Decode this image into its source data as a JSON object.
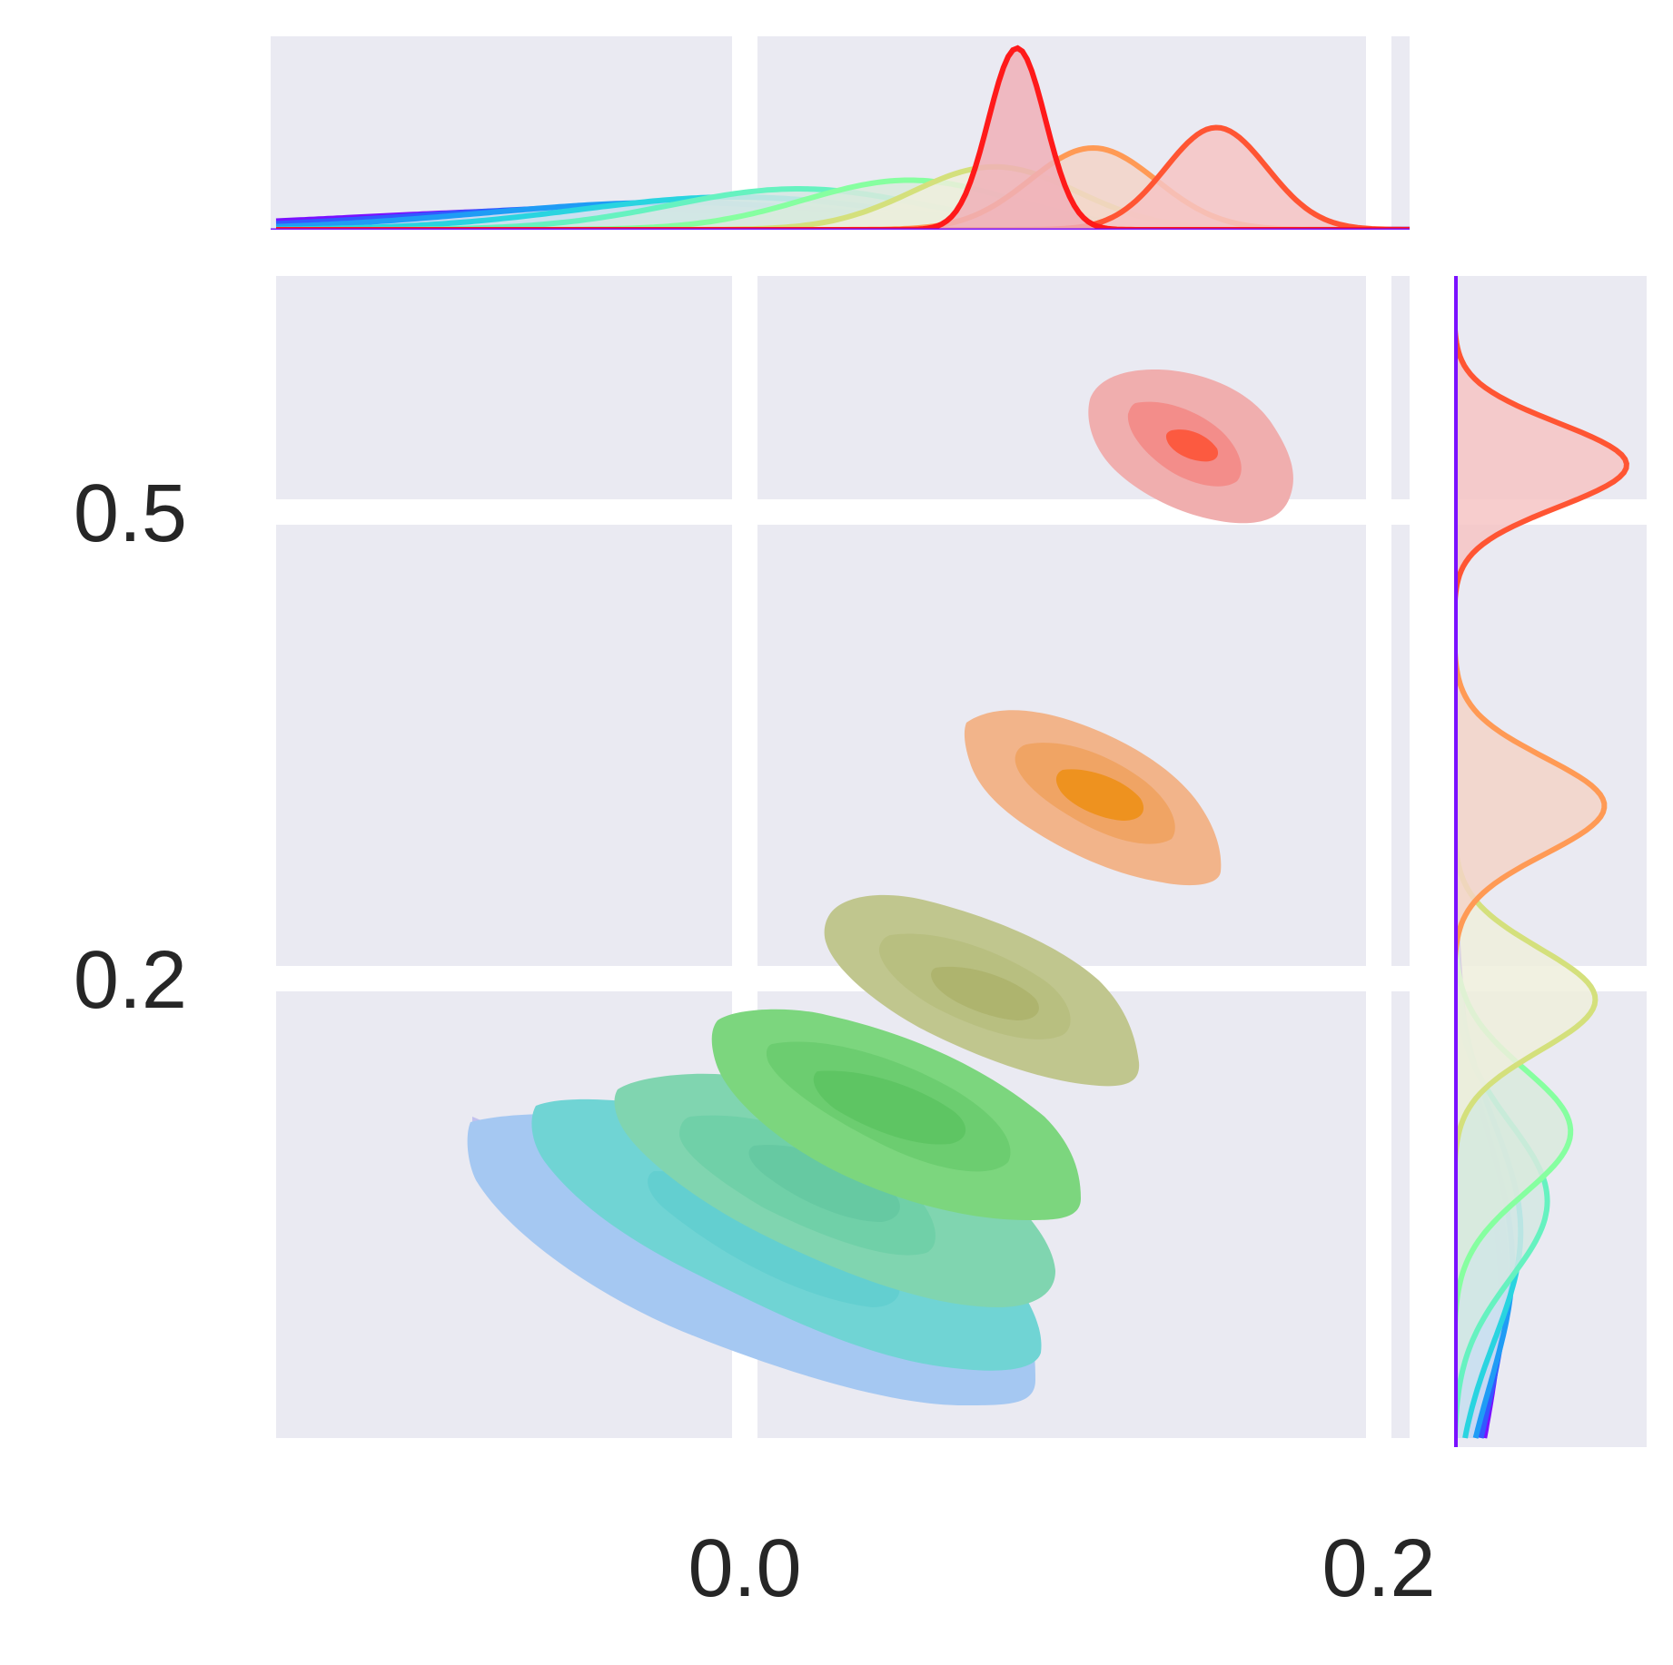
{
  "chart_data": {
    "type": "joint-kde",
    "background_color": "#eaeaf2",
    "grid": true,
    "grid_color": "#ffffff",
    "x_axis": {
      "ticks": [
        0.0,
        0.2
      ],
      "tick_labels": [
        "0.0",
        "0.2"
      ],
      "range": [
        -0.145,
        0.213
      ]
    },
    "y_axis": {
      "ticks": [
        0.2,
        0.5
      ],
      "tick_labels": [
        "0.2",
        "0.5"
      ],
      "range": [
        -0.083,
        0.667
      ]
    },
    "series": [
      {
        "color": "#ff1a1a",
        "fill": "#f0b0b8",
        "x_mean": 0.089,
        "y_mean": null,
        "x_sd": 0.009,
        "y_sd": null,
        "joint_fill": null
      },
      {
        "color": "#ff5533",
        "fill": "#f6c4c4",
        "x_mean": 0.152,
        "y_mean": 0.545,
        "x_sd": 0.016,
        "y_sd": 0.027,
        "joint_fill": "#fc6a4e"
      },
      {
        "color": "#ff9a55",
        "fill": "#f3d4c8",
        "x_mean": 0.113,
        "y_mean": 0.325,
        "x_sd": 0.02,
        "y_sd": 0.031,
        "joint_fill": "#f3972a"
      },
      {
        "color": "#d4e07c",
        "fill": "#efeedc",
        "x_mean": 0.082,
        "y_mean": 0.2,
        "x_sd": 0.026,
        "y_sd": 0.033,
        "joint_fill": "#b0b56a"
      },
      {
        "color": "#86ffa0",
        "fill": "#d9eadd",
        "x_mean": 0.055,
        "y_mean": 0.115,
        "x_sd": 0.033,
        "y_sd": 0.04,
        "joint_fill": "#5ac66a"
      },
      {
        "color": "#66f2c0",
        "fill": "#d4e8e3",
        "x_mean": 0.02,
        "y_mean": 0.07,
        "x_sd": 0.04,
        "y_sd": 0.05,
        "joint_fill": "#6ecaa4"
      },
      {
        "color": "#29d4e0",
        "fill": "#cbe2ee",
        "x_mean": 0.0,
        "y_mean": 0.05,
        "x_sd": 0.05,
        "y_sd": 0.07,
        "joint_fill": "#5fcfd0"
      },
      {
        "color": "#1f9cf5",
        "fill": "#c7d8f2",
        "x_mean": -0.02,
        "y_mean": 0.03,
        "x_sd": 0.06,
        "y_sd": 0.08,
        "joint_fill": "#a3c7f1"
      },
      {
        "color": "#3358ff",
        "fill": "#c8cef5",
        "x_mean": -0.03,
        "y_mean": 0.02,
        "x_sd": 0.07,
        "y_sd": 0.09,
        "joint_fill": "#b8bdf0"
      },
      {
        "color": "#7a10ff",
        "fill": "#d2c4f5",
        "x_mean": -0.04,
        "y_mean": 0.01,
        "x_sd": 0.08,
        "y_sd": 0.1,
        "joint_fill": null
      }
    ]
  }
}
